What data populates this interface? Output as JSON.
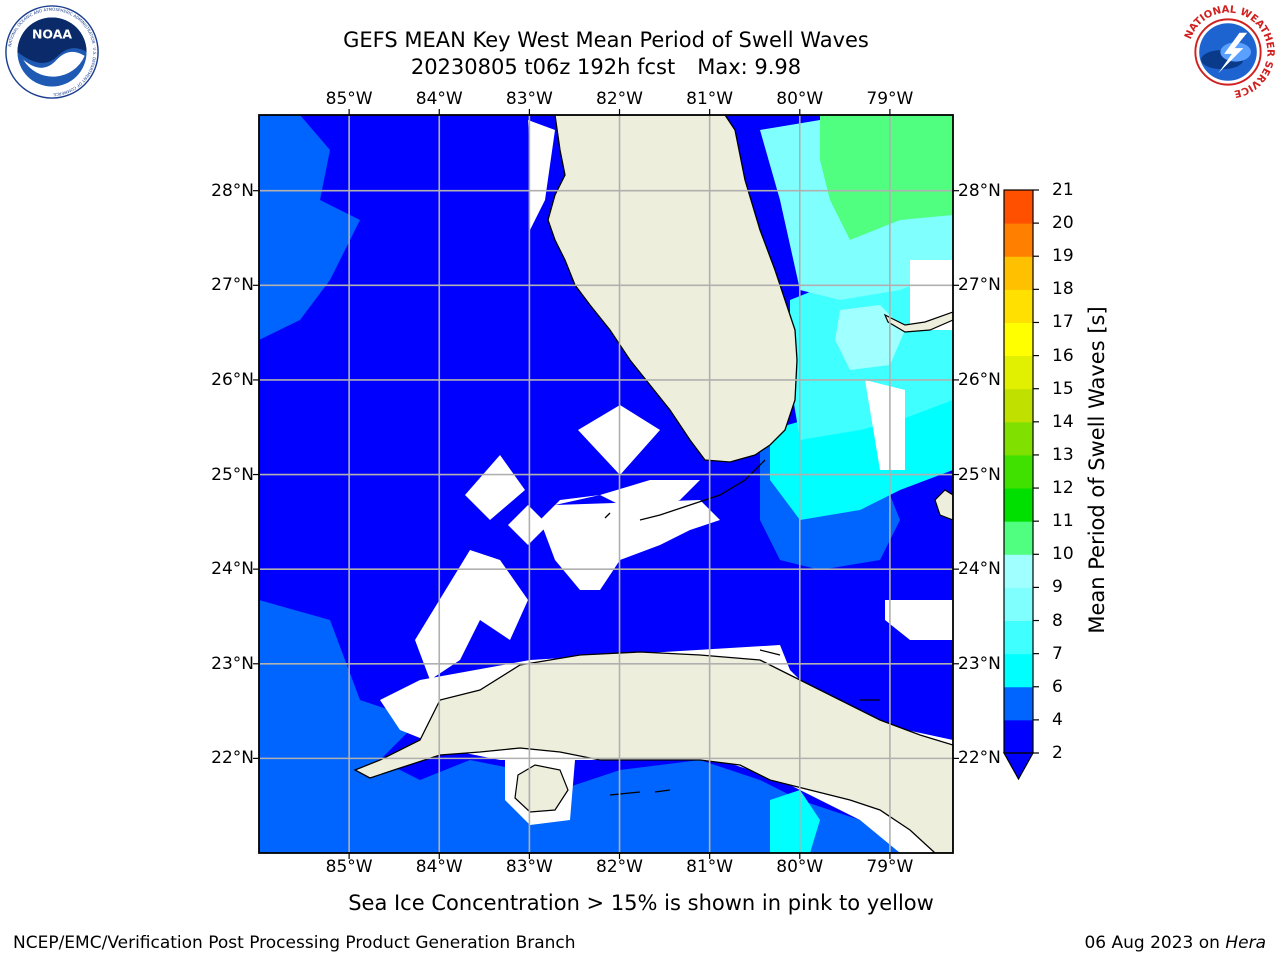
{
  "header": {
    "title_line1": "GEFS MEAN Key West Mean Period of Swell Waves",
    "run_label": "20230805 t06z 192h fcst",
    "max_label": "Max: 9.98"
  },
  "logos": {
    "left": "NOAA",
    "left_ring_text": "NATIONAL OCEANIC AND ATMOSPHERIC ADMINISTRATION · U.S. DEPARTMENT OF COMMERCE",
    "right_ring_text": "NATIONAL WEATHER SERVICE"
  },
  "map": {
    "lon_labels": [
      "85°W",
      "84°W",
      "83°W",
      "82°W",
      "81°W",
      "80°W",
      "79°W"
    ],
    "lat_labels": [
      "28°N",
      "27°N",
      "26°N",
      "25°N",
      "24°N",
      "23°N",
      "22°N"
    ],
    "lon_range": [
      -86.0,
      -78.3
    ],
    "lat_range": [
      21.0,
      28.8
    ],
    "grid": true,
    "land_color": "#eeeedd",
    "no_data_color": "#ffffff"
  },
  "colorbar": {
    "label": "Mean Period of Swell Waves [s]",
    "ticks": [
      2,
      4,
      6,
      7,
      8,
      9,
      10,
      11,
      12,
      13,
      14,
      15,
      16,
      17,
      18,
      19,
      20,
      21
    ],
    "tick_labels": [
      "2",
      "4",
      "6",
      "7",
      "8",
      "9",
      "10",
      "11",
      "12",
      "13",
      "14",
      "15",
      "16",
      "17",
      "18",
      "19",
      "20",
      "21"
    ],
    "colors": [
      "#0000ff",
      "#0064ff",
      "#00ffff",
      "#40ffff",
      "#80ffff",
      "#a0ffff",
      "#50ff80",
      "#00e000",
      "#40e000",
      "#80e000",
      "#c0e000",
      "#e0f000",
      "#ffff00",
      "#ffe000",
      "#ffc000",
      "#ff8000",
      "#ff5000",
      "#ff0000"
    ],
    "extend": "min"
  },
  "footer": {
    "note": "Sea Ice Concentration > 15% is shown in pink to yellow",
    "credit": "NCEP/EMC/Verification Post Processing Product Generation Branch",
    "date": "06 Aug 2023 on",
    "host": "Hera"
  }
}
